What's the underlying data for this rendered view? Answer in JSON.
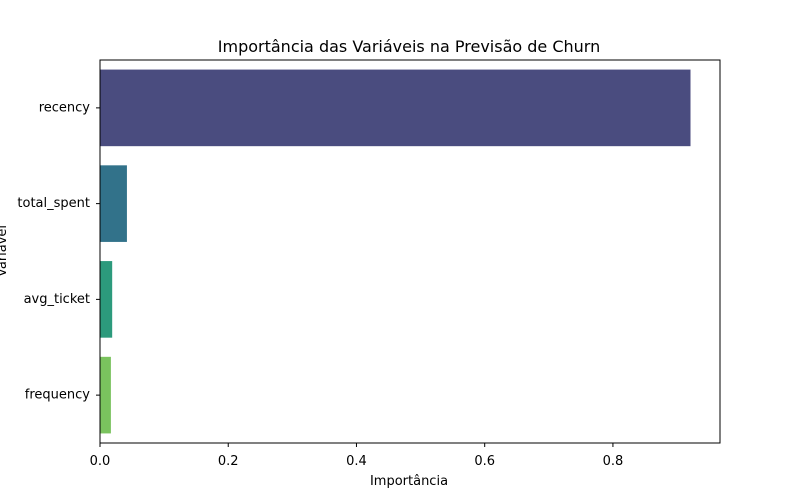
{
  "chart_data": {
    "type": "bar",
    "orientation": "horizontal",
    "title": "Importância das Variáveis na Previsão de Churn",
    "xlabel": "Importância",
    "ylabel": "Variável",
    "categories": [
      "recency",
      "total_spent",
      "avg_ticket",
      "frequency"
    ],
    "values": [
      0.921,
      0.042,
      0.019,
      0.017
    ],
    "xlim": [
      0,
      0.967
    ],
    "xticks": [
      0.0,
      0.2,
      0.4,
      0.6,
      0.8
    ],
    "xtick_labels": [
      "0.0",
      "0.2",
      "0.4",
      "0.6",
      "0.8"
    ],
    "colors": [
      "#4a4c7f",
      "#32728a",
      "#2c9a7c",
      "#7ac35e"
    ],
    "grid": false,
    "legend": "none"
  }
}
